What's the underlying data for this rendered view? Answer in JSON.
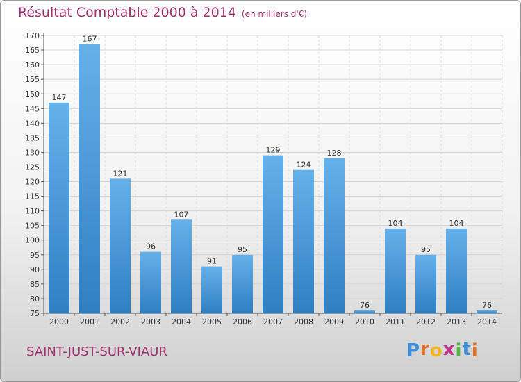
{
  "title": "Résultat Comptable 2000 à 2014",
  "unit_label": "(en milliers d'€)",
  "commune": "SAINT-JUST-SUR-VIAUR",
  "logo": {
    "letters": [
      "P",
      "r",
      "o",
      "x",
      "i",
      "t",
      "i"
    ],
    "colors": [
      "#3f8fd6",
      "#e2712b",
      "#f2b51c",
      "#c23a8f",
      "#52b347",
      "#3f8fd6",
      "#e2712b"
    ]
  },
  "colors": {
    "bar_light": "#65b1ea",
    "bar_dark": "#2f7fc2",
    "text_accent": "#a0306e"
  },
  "chart_data": {
    "type": "bar",
    "categories": [
      "2000",
      "2001",
      "2002",
      "2003",
      "2004",
      "2005",
      "2006",
      "2007",
      "2008",
      "2009",
      "2010",
      "2011",
      "2012",
      "2013",
      "2014"
    ],
    "values": [
      147,
      167,
      121,
      96,
      107,
      91,
      95,
      129,
      124,
      128,
      76,
      104,
      95,
      104,
      76
    ],
    "ylim": [
      75,
      170
    ],
    "yticks": [
      75,
      80,
      85,
      90,
      95,
      100,
      105,
      110,
      115,
      120,
      125,
      130,
      135,
      140,
      145,
      150,
      155,
      160,
      165,
      170
    ],
    "grid": true,
    "legend": "none",
    "data_labels": true
  }
}
